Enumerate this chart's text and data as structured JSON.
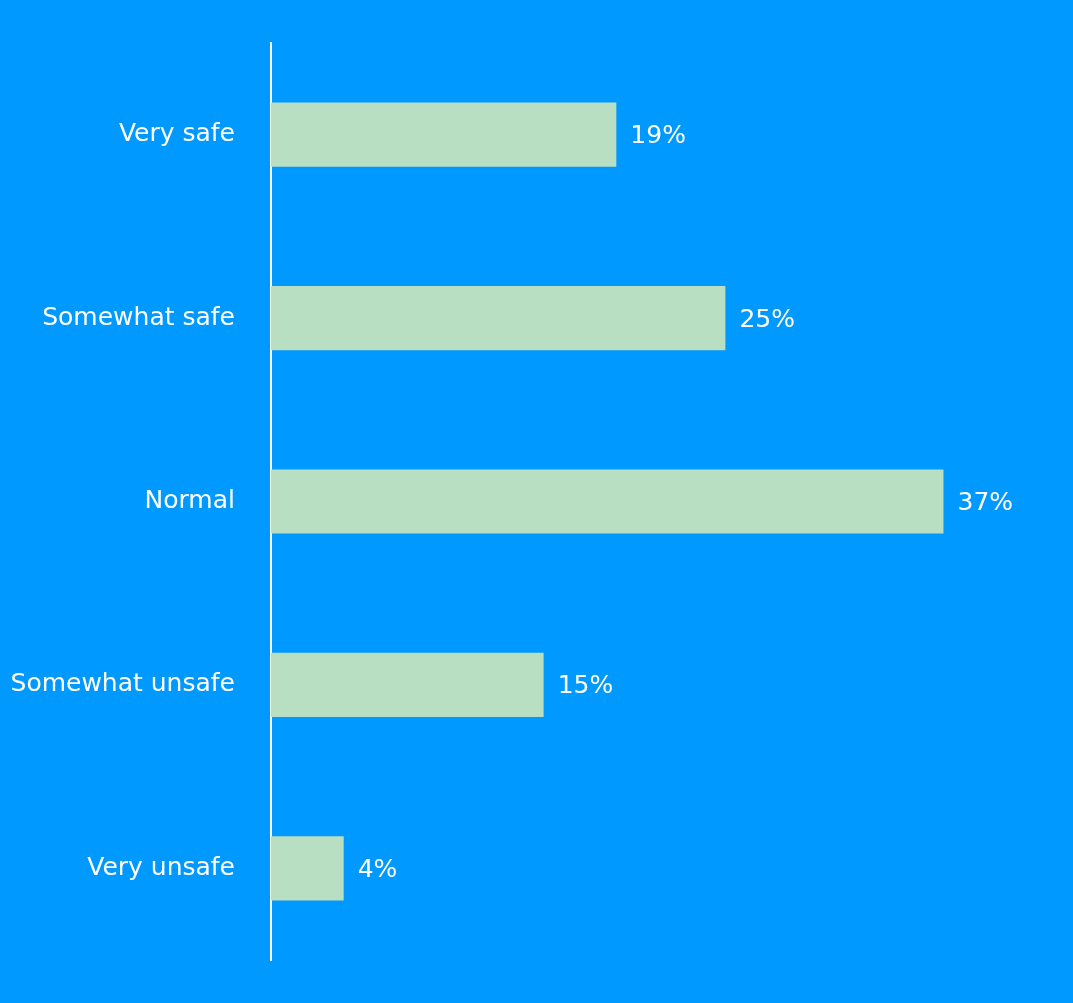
{
  "chart_data": {
    "type": "bar",
    "orientation": "horizontal",
    "categories": [
      "Very safe",
      "Somewhat safe",
      "Normal",
      "Somewhat unsafe",
      "Very unsafe"
    ],
    "values": [
      19,
      25,
      37,
      15,
      4
    ],
    "value_labels": [
      "19%",
      "25%",
      "37%",
      "15%",
      "4%"
    ],
    "color": "#b8dfc2",
    "grid": false,
    "legend": false,
    "tick_labels": "y"
  }
}
